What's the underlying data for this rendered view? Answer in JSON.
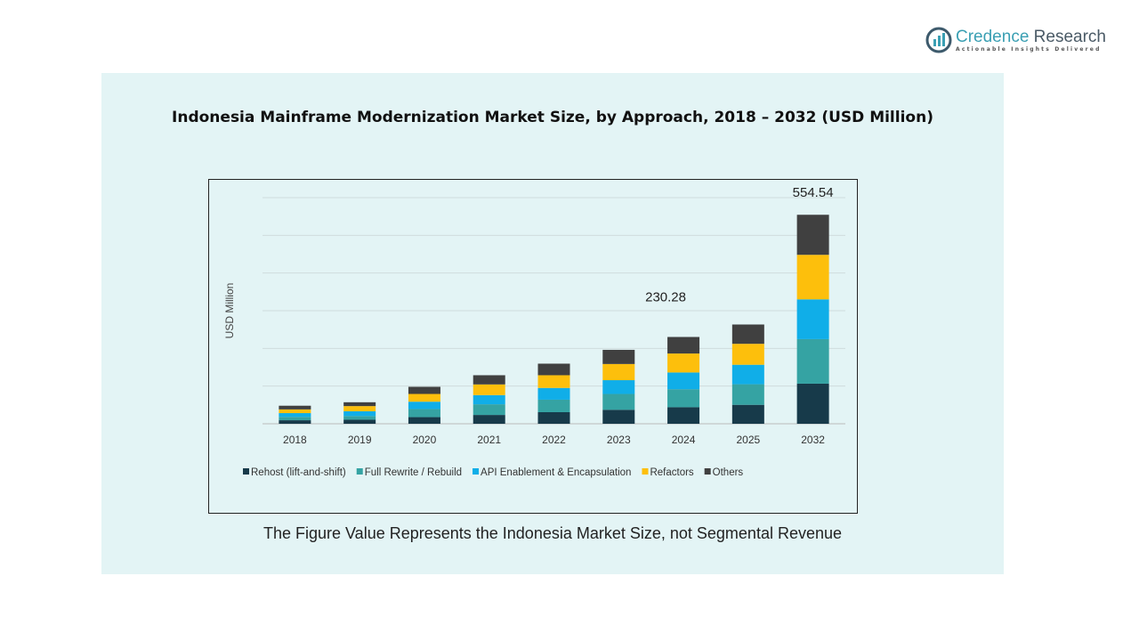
{
  "logo": {
    "name_a": "Credence",
    "name_b": " Research",
    "tagline": "Actionable Insights Delivered"
  },
  "note": "The Figure Value Represents the Indonesia Market Size, not Segmental Revenue",
  "chart_data": {
    "type": "bar",
    "stacked": true,
    "title": "Indonesia Mainframe Modernization Market Size, by Approach, 2018 – 2032 (USD Million)",
    "xlabel": "",
    "ylabel": "USD Million",
    "ylim": [
      0,
      600
    ],
    "grid": true,
    "legend": "bottom",
    "categories": [
      "2018",
      "2019",
      "2020",
      "2021",
      "2022",
      "2023",
      "2024",
      "2025",
      "2032"
    ],
    "series": [
      {
        "name": "Rehost (lift-and-shift)",
        "color": "#173a4a",
        "values": [
          9.3,
          10.7,
          17.6,
          23.4,
          30.7,
          37.1,
          43.9,
          50.3,
          106.4
        ]
      },
      {
        "name": "Full Rewrite / Rebuild",
        "color": "#35a3a3",
        "values": [
          8.8,
          9.8,
          21.5,
          28.3,
          33.2,
          42.0,
          47.8,
          54.6,
          118.2
        ]
      },
      {
        "name": "API Enablement & Encapsulation",
        "color": "#10aee8",
        "values": [
          10.2,
          12.7,
          19.5,
          24.4,
          31.2,
          36.6,
          44.4,
          51.7,
          105.5
        ]
      },
      {
        "name": "Refactors",
        "color": "#fdbf0c",
        "values": [
          9.8,
          13.7,
          20.5,
          28.3,
          33.7,
          42.9,
          50.3,
          55.6,
          118.2
        ]
      },
      {
        "name": "Others",
        "color": "#404040",
        "values": [
          9.8,
          10.2,
          19.0,
          24.4,
          30.7,
          37.6,
          43.9,
          51.2,
          106.24
        ]
      }
    ],
    "annotations": [
      {
        "category": "2024",
        "text": "230.28"
      },
      {
        "category": "2032",
        "text": "554.54"
      }
    ]
  }
}
